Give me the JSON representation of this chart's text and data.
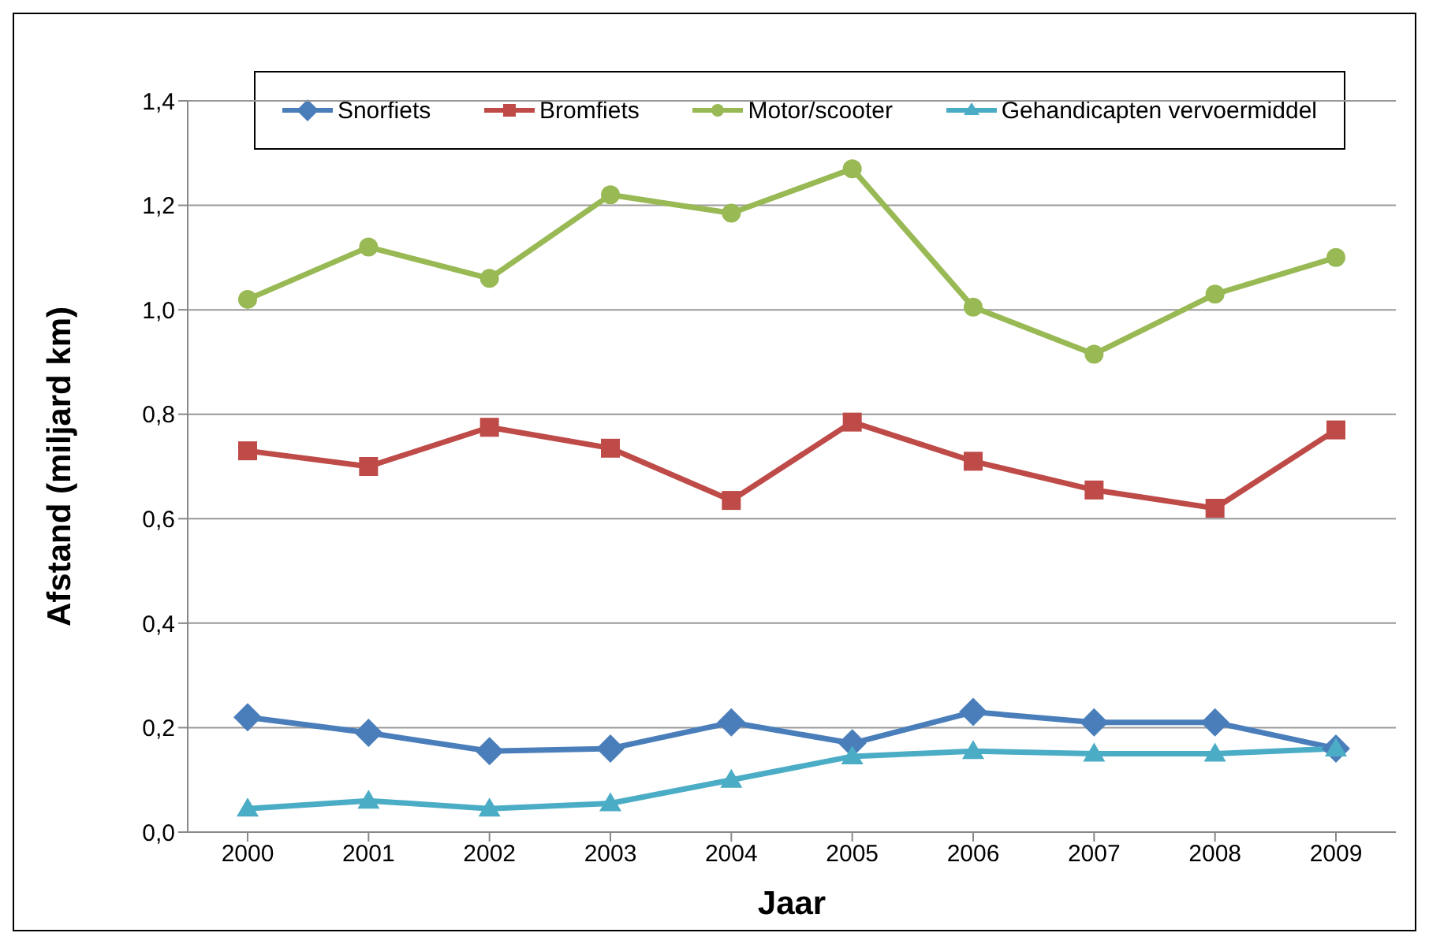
{
  "chart_data": {
    "type": "line",
    "xlabel": "Jaar",
    "ylabel": "Afstand (miljard km)",
    "categories": [
      "2000",
      "2001",
      "2002",
      "2003",
      "2004",
      "2005",
      "2006",
      "2007",
      "2008",
      "2009"
    ],
    "series": [
      {
        "name": "Snorfiets",
        "color": "#4a7ebb",
        "marker": "diamond",
        "values": [
          0.22,
          0.19,
          0.155,
          0.16,
          0.21,
          0.17,
          0.23,
          0.21,
          0.21,
          0.16
        ]
      },
      {
        "name": "Bromfiets",
        "color": "#be4b48",
        "marker": "square",
        "values": [
          0.73,
          0.7,
          0.775,
          0.735,
          0.635,
          0.785,
          0.71,
          0.655,
          0.62,
          0.77
        ]
      },
      {
        "name": "Motor/scooter",
        "color": "#98b954",
        "marker": "circle",
        "values": [
          1.02,
          1.12,
          1.06,
          1.22,
          1.185,
          1.27,
          1.005,
          0.915,
          1.03,
          1.1
        ]
      },
      {
        "name": "Gehandicapten vervoermiddel",
        "color": "#4bacc6",
        "marker": "triangle",
        "values": [
          0.045,
          0.06,
          0.045,
          0.055,
          0.1,
          0.145,
          0.155,
          0.15,
          0.15,
          0.16
        ]
      }
    ],
    "ylim": [
      0,
      1.4
    ],
    "yticks": [
      {
        "value": 0,
        "label": "0,0"
      },
      {
        "value": 0.2,
        "label": "0,2"
      },
      {
        "value": 0.4,
        "label": "0,4"
      },
      {
        "value": 0.6,
        "label": "0,6"
      },
      {
        "value": 0.8,
        "label": "0,8"
      },
      {
        "value": 1.0,
        "label": "1,0"
      },
      {
        "value": 1.2,
        "label": "1,2"
      },
      {
        "value": 1.4,
        "label": "1,4"
      }
    ],
    "grid": "y",
    "legend": "top"
  }
}
